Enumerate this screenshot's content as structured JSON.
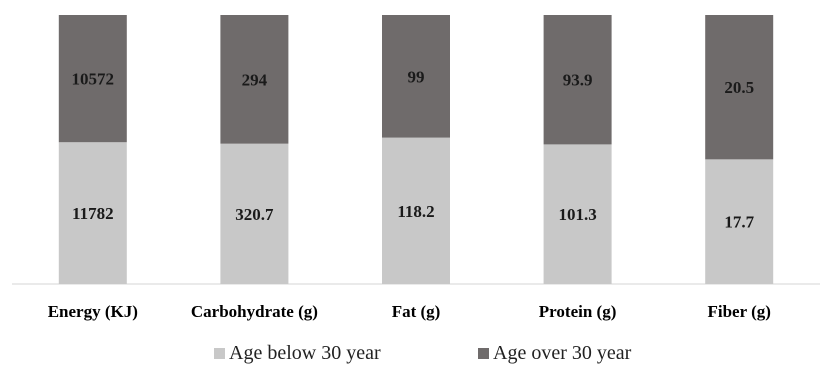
{
  "chart_data": {
    "type": "bar",
    "stacked": true,
    "normalized": true,
    "categories": [
      "Energy (KJ)",
      "Carbohydrate (g)",
      "Fat (g)",
      "Protein (g)",
      "Fiber (g)"
    ],
    "series": [
      {
        "name": "Age below 30 year",
        "values": [
          11782,
          320.7,
          118.2,
          101.3,
          17.7
        ],
        "color": "#c8c8c8"
      },
      {
        "name": "Age over 30 year",
        "values": [
          10572,
          294,
          99,
          93.9,
          20.5
        ],
        "color": "#6f6b6b"
      }
    ],
    "value_labels": [
      [
        "11782",
        "320.7",
        "118.2",
        "101.3",
        "17.7"
      ],
      [
        "10572",
        "294",
        "99",
        "93.9",
        "20.5"
      ]
    ],
    "legend_position": "bottom",
    "grid": false
  }
}
